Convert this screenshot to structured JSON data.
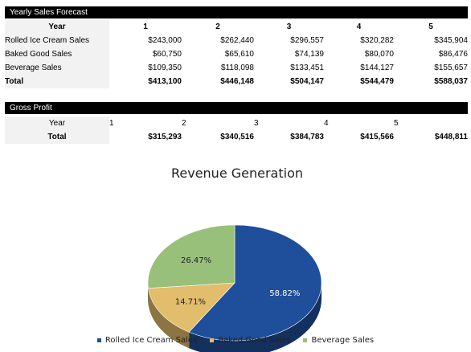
{
  "forecast": {
    "section_title": "Yearly Sales Forecast",
    "header_label": "Year",
    "years": [
      "1",
      "2",
      "3",
      "4",
      "5"
    ],
    "rows": [
      {
        "label": "Rolled Ice Cream Sales",
        "values": [
          "$243,000",
          "$262,440",
          "$296,557",
          "$320,282",
          "$345,904"
        ]
      },
      {
        "label": "Baked Good Sales",
        "values": [
          "$60,750",
          "$65,610",
          "$74,139",
          "$80,070",
          "$86,476"
        ]
      },
      {
        "label": "Beverage Sales",
        "values": [
          "$109,350",
          "$118,098",
          "$133,451",
          "$144,127",
          "$155,657"
        ]
      }
    ],
    "total": {
      "label": "Total",
      "values": [
        "$413,100",
        "$446,148",
        "$504,147",
        "$544,479",
        "$588,037"
      ]
    }
  },
  "gross_profit": {
    "section_title": "Gross Profit",
    "header_label": "Year",
    "years": [
      "1",
      "2",
      "3",
      "4",
      "5"
    ],
    "total": {
      "label": "Total",
      "values": [
        "$315,293",
        "$340,516",
        "$384,783",
        "$415,566",
        "$448,811"
      ]
    }
  },
  "chart_data": {
    "type": "pie",
    "title": "Revenue Generation",
    "labels": [
      "Rolled Ice Cream Sales",
      "Baked Good Sales",
      "Beverage Sales"
    ],
    "values": [
      58.82,
      14.71,
      26.47
    ],
    "data_labels": [
      "58.82%",
      "14.71%",
      "26.47%"
    ],
    "colors": [
      "#1f4e9a",
      "#e2bd6b",
      "#98c07a"
    ],
    "legend_position": "bottom",
    "style": "3d"
  }
}
